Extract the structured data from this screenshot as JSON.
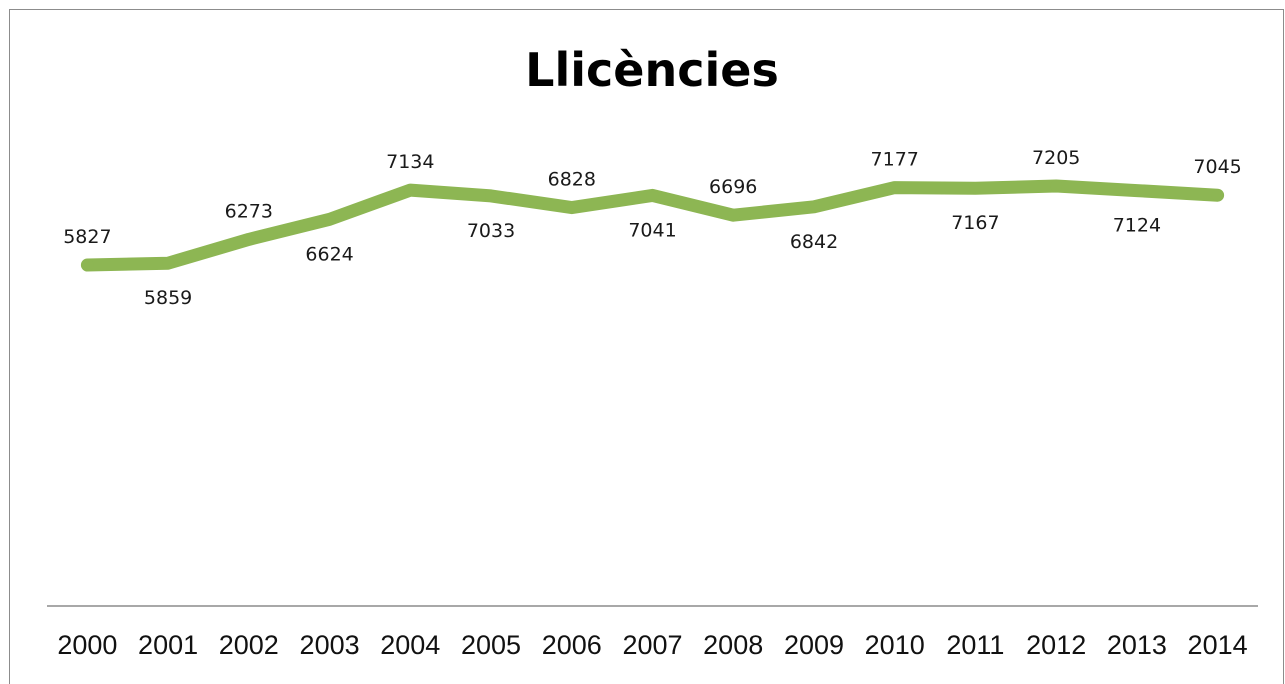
{
  "chart_data": {
    "type": "line",
    "title": "Llicències",
    "xlabel": "",
    "ylabel": "",
    "categories": [
      "2000",
      "2001",
      "2002",
      "2003",
      "2004",
      "2005",
      "2006",
      "2007",
      "2008",
      "2009",
      "2010",
      "2011",
      "2012",
      "2013",
      "2014"
    ],
    "series": [
      {
        "values": [
          5827,
          5859,
          6273,
          6624,
          7134,
          7033,
          6828,
          7041,
          6696,
          6842,
          7177,
          7167,
          7205,
          7124,
          7045
        ],
        "color": "#8db653"
      }
    ],
    "data_labels": true,
    "grid": false,
    "legend": "none",
    "y_axis_visible": false,
    "axis_line_color": "#8c8c8c"
  }
}
